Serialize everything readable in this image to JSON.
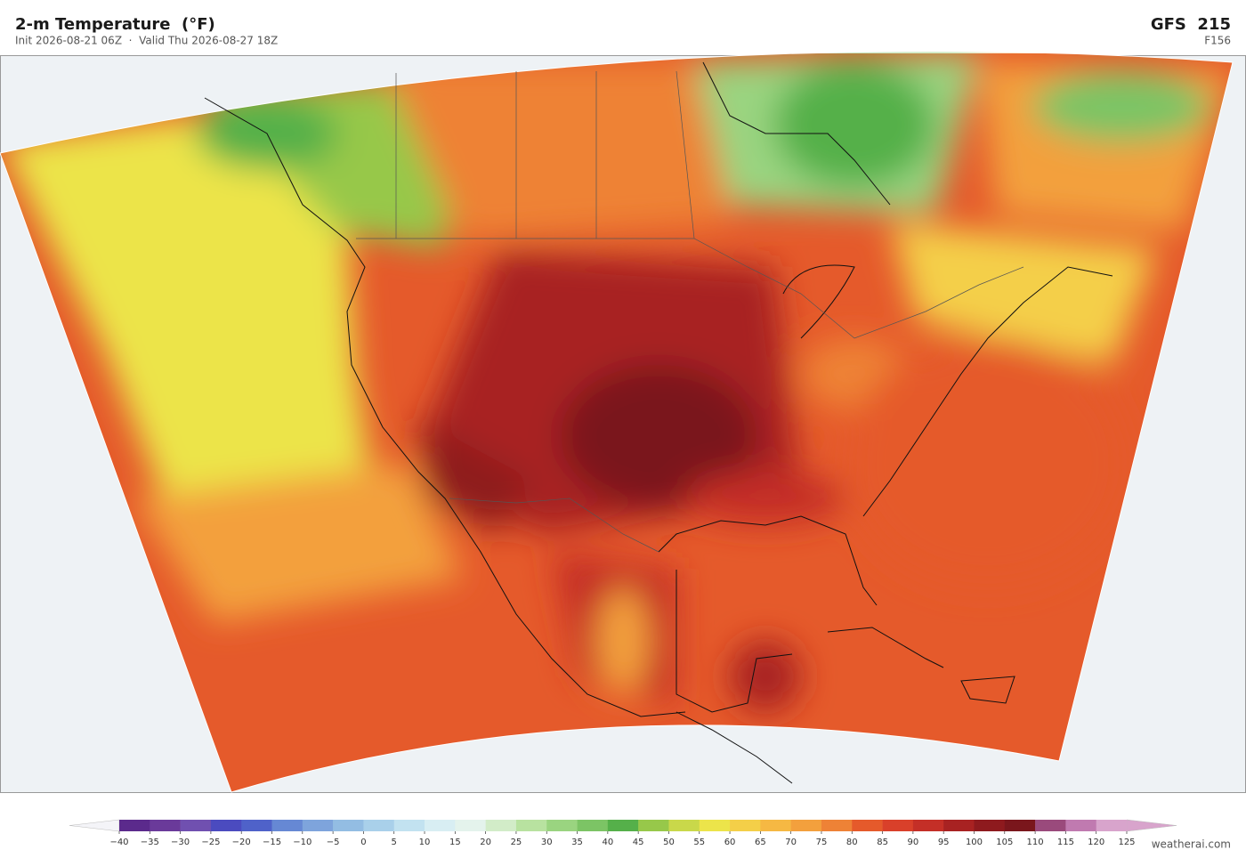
{
  "header": {
    "title": "2-m Temperature  (°F)",
    "subtitle": "Init 2026-08-21 06Z  ·  Valid Thu 2026-08-27 18Z",
    "model": "GFS  215",
    "forecast_hour": "F156"
  },
  "colorbar": {
    "ticks": [
      {
        "value": -40,
        "label": "−40"
      },
      {
        "value": -35,
        "label": "−35"
      },
      {
        "value": -30,
        "label": "−30"
      },
      {
        "value": -25,
        "label": "−25"
      },
      {
        "value": -20,
        "label": "−20"
      },
      {
        "value": -15,
        "label": "−15"
      },
      {
        "value": -10,
        "label": "−10"
      },
      {
        "value": -5,
        "label": "−5"
      },
      0,
      5,
      10,
      15,
      20,
      25,
      30,
      35,
      40,
      45,
      50,
      55,
      60,
      65,
      70,
      75,
      80,
      85,
      90,
      95,
      100,
      105,
      110,
      115,
      120,
      125
    ],
    "colors": [
      "#5b2a8c",
      "#6a3a9a",
      "#7050b0",
      "#4b4bbf",
      "#4f62c9",
      "#6688d4",
      "#7ea4dc",
      "#93bde3",
      "#a9d0ea",
      "#c2e2f0",
      "#d8eef3",
      "#e4f3ec",
      "#d2ecc8",
      "#b8e2a0",
      "#9ad480",
      "#7cc465",
      "#55b04a",
      "#97c84a",
      "#c9d84a",
      "#ece44a",
      "#f4cf48",
      "#f6b843",
      "#f3a03d",
      "#ee8236",
      "#e55a2b",
      "#d9402a",
      "#c42f27",
      "#a82222",
      "#8e1a1e",
      "#7a161c",
      "#9a4a7c",
      "#c07ab0",
      "#d8a4cc"
    ],
    "under_color": "#f4f4f8",
    "over_color": "#d8a4cc"
  },
  "footer": {
    "credit": "weatherai.com"
  }
}
